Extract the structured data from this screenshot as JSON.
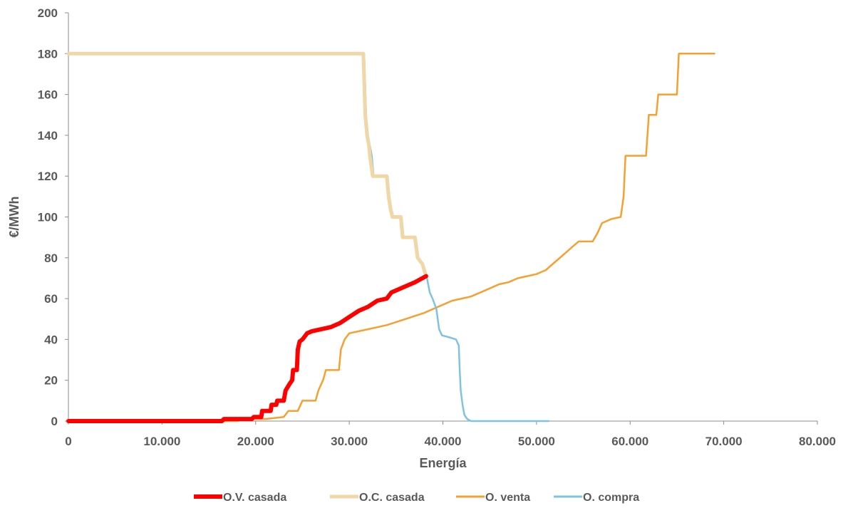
{
  "chart_data": {
    "type": "line",
    "title": "",
    "xlabel": "Energía",
    "ylabel": "€/MWh",
    "xlim": [
      0,
      80000
    ],
    "ylim": [
      0,
      200
    ],
    "x_ticks": [
      0,
      10000,
      20000,
      30000,
      40000,
      50000,
      60000,
      70000,
      80000
    ],
    "x_tick_labels": [
      "0",
      "10.000",
      "20.000",
      "30.000",
      "40.000",
      "50.000",
      "60.000",
      "70.000",
      "80.000"
    ],
    "y_ticks": [
      0,
      20,
      40,
      60,
      80,
      100,
      120,
      140,
      160,
      180,
      200
    ],
    "y_tick_labels": [
      "0",
      "20",
      "40",
      "60",
      "80",
      "100",
      "120",
      "140",
      "160",
      "180",
      "200"
    ],
    "grid": false,
    "legend_position": "bottom",
    "series": [
      {
        "name": "O.V. casada",
        "color": "#ff0000",
        "width": 6,
        "points": [
          [
            0,
            0
          ],
          [
            16400,
            0
          ],
          [
            16600,
            1
          ],
          [
            19600,
            1
          ],
          [
            19800,
            2
          ],
          [
            20600,
            2
          ],
          [
            20700,
            5
          ],
          [
            21600,
            5
          ],
          [
            21700,
            8
          ],
          [
            22200,
            8
          ],
          [
            22300,
            10
          ],
          [
            23000,
            10
          ],
          [
            23200,
            15
          ],
          [
            23600,
            18
          ],
          [
            23900,
            20
          ],
          [
            24000,
            25
          ],
          [
            24400,
            25
          ],
          [
            24500,
            35
          ],
          [
            24700,
            39
          ],
          [
            25000,
            40
          ],
          [
            25500,
            43
          ],
          [
            26000,
            44
          ],
          [
            27000,
            45
          ],
          [
            28000,
            46
          ],
          [
            29000,
            48
          ],
          [
            30000,
            51
          ],
          [
            31000,
            54
          ],
          [
            32000,
            56
          ],
          [
            33000,
            59
          ],
          [
            34000,
            60
          ],
          [
            34500,
            63
          ],
          [
            35000,
            64
          ],
          [
            36000,
            66
          ],
          [
            37000,
            68
          ],
          [
            38200,
            71
          ]
        ]
      },
      {
        "name": "O.C. casada",
        "color": "#f2d7a6",
        "width": 5,
        "points": [
          [
            0,
            180
          ],
          [
            31500,
            180
          ],
          [
            31700,
            150
          ],
          [
            31900,
            140
          ],
          [
            32100,
            135
          ],
          [
            32200,
            130
          ],
          [
            32500,
            120
          ],
          [
            34000,
            120
          ],
          [
            34200,
            110
          ],
          [
            34400,
            104
          ],
          [
            34600,
            100
          ],
          [
            35500,
            100
          ],
          [
            35700,
            90
          ],
          [
            37000,
            90
          ],
          [
            37300,
            80
          ],
          [
            37800,
            77
          ],
          [
            38200,
            71
          ]
        ]
      },
      {
        "name": "O. venta",
        "color": "#f5a030",
        "width": 2.5,
        "points": [
          [
            0,
            0
          ],
          [
            18000,
            0
          ],
          [
            19000,
            1
          ],
          [
            21000,
            1
          ],
          [
            23000,
            2
          ],
          [
            23500,
            5
          ],
          [
            24500,
            5
          ],
          [
            25000,
            10
          ],
          [
            26400,
            10
          ],
          [
            26700,
            15
          ],
          [
            27200,
            20
          ],
          [
            27500,
            25
          ],
          [
            28900,
            25
          ],
          [
            29100,
            35
          ],
          [
            29500,
            40
          ],
          [
            30000,
            43
          ],
          [
            32000,
            45
          ],
          [
            34000,
            47
          ],
          [
            36000,
            50
          ],
          [
            38000,
            53
          ],
          [
            39000,
            55
          ],
          [
            40000,
            57
          ],
          [
            41000,
            59
          ],
          [
            42000,
            60
          ],
          [
            43000,
            61
          ],
          [
            44000,
            63
          ],
          [
            45000,
            65
          ],
          [
            46000,
            67
          ],
          [
            47000,
            68
          ],
          [
            48000,
            70
          ],
          [
            49000,
            71
          ],
          [
            50000,
            72
          ],
          [
            51000,
            74
          ],
          [
            52000,
            78
          ],
          [
            53000,
            82
          ],
          [
            54000,
            86
          ],
          [
            54500,
            88
          ],
          [
            56000,
            88
          ],
          [
            56500,
            92
          ],
          [
            57000,
            97
          ],
          [
            58000,
            99
          ],
          [
            59000,
            100
          ],
          [
            59300,
            110
          ],
          [
            59500,
            130
          ],
          [
            61700,
            130
          ],
          [
            62000,
            150
          ],
          [
            62800,
            150
          ],
          [
            63000,
            160
          ],
          [
            65000,
            160
          ],
          [
            65200,
            180
          ],
          [
            69000,
            180
          ]
        ]
      },
      {
        "name": "O. compra",
        "color": "#7ec3e3",
        "width": 2.5,
        "points": [
          [
            0,
            180
          ],
          [
            31600,
            180
          ],
          [
            31800,
            150
          ],
          [
            32000,
            140
          ],
          [
            32200,
            135
          ],
          [
            32400,
            130
          ],
          [
            32600,
            120
          ],
          [
            34100,
            120
          ],
          [
            34300,
            110
          ],
          [
            34500,
            104
          ],
          [
            34700,
            100
          ],
          [
            35600,
            100
          ],
          [
            35800,
            90
          ],
          [
            37100,
            90
          ],
          [
            37400,
            80
          ],
          [
            37900,
            77
          ],
          [
            38300,
            70
          ],
          [
            38600,
            63
          ],
          [
            38900,
            60
          ],
          [
            39300,
            55
          ],
          [
            39600,
            45
          ],
          [
            39900,
            42
          ],
          [
            40700,
            41
          ],
          [
            41400,
            40
          ],
          [
            41700,
            37
          ],
          [
            41800,
            25
          ],
          [
            41900,
            15
          ],
          [
            42100,
            8
          ],
          [
            42300,
            3
          ],
          [
            42600,
            1
          ],
          [
            43000,
            0
          ],
          [
            51300,
            0
          ]
        ]
      }
    ]
  }
}
